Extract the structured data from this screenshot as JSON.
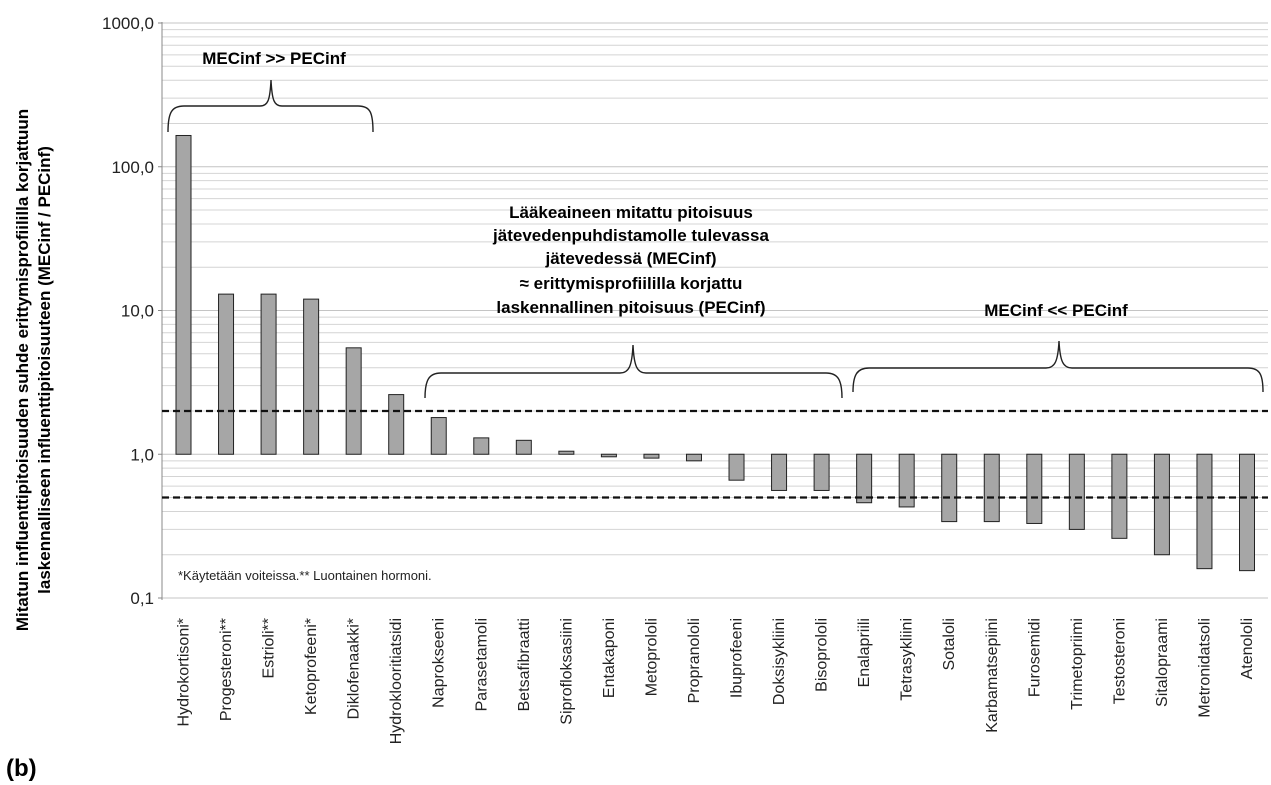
{
  "panel_label": "(b)",
  "chart_data": {
    "type": "bar",
    "yscale": "log",
    "ylim": [
      0.1,
      1000
    ],
    "ylabel_lines": [
      "Mitatun influenttipitoisuuden suhde erittymisprofiililla korjattuun",
      "laskennalliseen influenttipitoisuuteen (MECinf / PECinf)"
    ],
    "yticks": [
      {
        "value": 0.1,
        "label": "0,1"
      },
      {
        "value": 1,
        "label": "1,0"
      },
      {
        "value": 10,
        "label": "10,0"
      },
      {
        "value": 100,
        "label": "100,0"
      },
      {
        "value": 1000,
        "label": "1000,0"
      }
    ],
    "grid": true,
    "categories": [
      "Hydrokortisoni*",
      "Progesteroni**",
      "Estrioli**",
      "Ketoprofeeni*",
      "Diklofenaakki*",
      "Hydroklooritiatsidi",
      "Naprokseeni",
      "Parasetamoli",
      "Betsafibraatti",
      "Siprofloksasiini",
      "Entakaponi",
      "Metoprololi",
      "Propranololi",
      "Ibuprofeeni",
      "Doksisykliini",
      "Bisoprololi",
      "Enalapriili",
      "Tetrasykliini",
      "Sotaloli",
      "Karbamatsepiini",
      "Furosemidi",
      "Trimetopriimi",
      "Testosteroni",
      "Sitalopraami",
      "Metronidatsoli",
      "Atenololi"
    ],
    "values": [
      165,
      13,
      13,
      12,
      5.5,
      2.6,
      1.8,
      1.3,
      1.25,
      1.05,
      0.96,
      0.94,
      0.9,
      0.66,
      0.56,
      0.56,
      0.46,
      0.43,
      0.34,
      0.34,
      0.33,
      0.3,
      0.26,
      0.2,
      0.16,
      0.155
    ],
    "reference_lines": [
      2.0,
      0.5
    ],
    "annotations": {
      "left": "MECinf >> PECinf",
      "middle_lines": [
        "Lääkeaineen mitattu pitoisuus",
        "jätevedenpuhdistamolle tulevassa",
        "jätevedessä (MECinf)",
        "≈ erittymisprofiililla  korjattu",
        "laskennallinen pitoisuus (PECinf)"
      ],
      "right": "MECinf << PECinf"
    },
    "footnote": "*Käytetään voiteissa.** Luontainen hormoni.",
    "colors": {
      "bar": "#a6a6a6",
      "bar_stroke": "#222222",
      "grid": "#d4d4d4"
    }
  }
}
